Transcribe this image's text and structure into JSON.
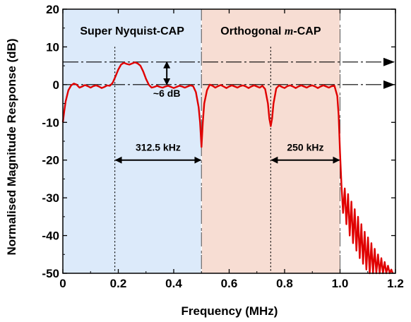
{
  "chart_data": {
    "type": "line",
    "xlabel": "Frequency (MHz)",
    "ylabel": "Normalised Magnitude Response (dB)",
    "xlim": [
      0,
      1.2
    ],
    "ylim": [
      -50,
      20
    ],
    "x_ticks": [
      "0",
      "0.2",
      "0.4",
      "0.6",
      "0.8",
      "1.0",
      "1.2"
    ],
    "y_ticks": [
      "-50",
      "-40",
      "-30",
      "-20",
      "-10",
      "0",
      "10",
      "20"
    ],
    "grid": false,
    "regions": [
      {
        "label": "Super Nyquist-CAP",
        "x_start": 0,
        "x_end": 0.5,
        "color": "#dceafa"
      },
      {
        "label": "Orthogonal m-CAP",
        "label_main": "Orthogonal ",
        "label_italic": "m",
        "label_tail": "-CAP",
        "x_start": 0.5,
        "x_end": 1.0,
        "color": "#f7ddd3"
      }
    ],
    "series": [
      {
        "color": "#e00000",
        "points": [
          [
            0.0,
            -10
          ],
          [
            0.005,
            -7
          ],
          [
            0.01,
            -4.5
          ],
          [
            0.02,
            -1.5
          ],
          [
            0.03,
            -0.2
          ],
          [
            0.04,
            0.3
          ],
          [
            0.05,
            0
          ],
          [
            0.06,
            -0.8
          ],
          [
            0.07,
            -0.5
          ],
          [
            0.08,
            -0.1
          ],
          [
            0.09,
            -0.4
          ],
          [
            0.1,
            -0.8
          ],
          [
            0.11,
            -0.4
          ],
          [
            0.12,
            -0.2
          ],
          [
            0.13,
            -0.5
          ],
          [
            0.14,
            -0.9
          ],
          [
            0.15,
            -0.6
          ],
          [
            0.16,
            -0.2
          ],
          [
            0.17,
            -0.3
          ],
          [
            0.18,
            0.5
          ],
          [
            0.19,
            2.2
          ],
          [
            0.2,
            4.0
          ],
          [
            0.21,
            5.3
          ],
          [
            0.22,
            5.8
          ],
          [
            0.23,
            5.5
          ],
          [
            0.24,
            5.3
          ],
          [
            0.25,
            5.6
          ],
          [
            0.26,
            5.9
          ],
          [
            0.27,
            5.6
          ],
          [
            0.28,
            5.0
          ],
          [
            0.29,
            3.5
          ],
          [
            0.3,
            1.5
          ],
          [
            0.31,
            0
          ],
          [
            0.32,
            -0.8
          ],
          [
            0.33,
            -0.6
          ],
          [
            0.34,
            -0.3
          ],
          [
            0.35,
            -0.6
          ],
          [
            0.36,
            -0.8
          ],
          [
            0.37,
            -0.5
          ],
          [
            0.38,
            -0.3
          ],
          [
            0.39,
            -0.6
          ],
          [
            0.4,
            -0.9
          ],
          [
            0.41,
            -0.6
          ],
          [
            0.42,
            -0.3
          ],
          [
            0.43,
            -0.5
          ],
          [
            0.44,
            -0.8
          ],
          [
            0.45,
            -0.5
          ],
          [
            0.46,
            -0.2
          ],
          [
            0.47,
            -0.4
          ],
          [
            0.48,
            -2.0
          ],
          [
            0.49,
            -6
          ],
          [
            0.495,
            -10
          ],
          [
            0.5,
            -16.5
          ],
          [
            0.505,
            -10
          ],
          [
            0.51,
            -5
          ],
          [
            0.52,
            -1.5
          ],
          [
            0.53,
            0
          ],
          [
            0.54,
            -0.3
          ],
          [
            0.55,
            -0.8
          ],
          [
            0.56,
            -0.4
          ],
          [
            0.57,
            -0.1
          ],
          [
            0.58,
            -0.5
          ],
          [
            0.59,
            -0.9
          ],
          [
            0.6,
            -0.5
          ],
          [
            0.61,
            -0.2
          ],
          [
            0.62,
            -0.5
          ],
          [
            0.63,
            -0.8
          ],
          [
            0.64,
            -0.4
          ],
          [
            0.65,
            -0.2
          ],
          [
            0.66,
            -0.5
          ],
          [
            0.67,
            -0.9
          ],
          [
            0.68,
            -0.5
          ],
          [
            0.69,
            -0.2
          ],
          [
            0.7,
            -0.5
          ],
          [
            0.71,
            -0.8
          ],
          [
            0.72,
            -0.3
          ],
          [
            0.73,
            -1.2
          ],
          [
            0.74,
            -5
          ],
          [
            0.745,
            -9
          ],
          [
            0.75,
            -11
          ],
          [
            0.755,
            -9
          ],
          [
            0.76,
            -5
          ],
          [
            0.77,
            -1.0
          ],
          [
            0.78,
            -0.2
          ],
          [
            0.79,
            -0.6
          ],
          [
            0.8,
            -0.9
          ],
          [
            0.81,
            -0.4
          ],
          [
            0.82,
            -0.2
          ],
          [
            0.83,
            -0.5
          ],
          [
            0.84,
            -0.9
          ],
          [
            0.85,
            -0.5
          ],
          [
            0.86,
            -0.2
          ],
          [
            0.87,
            -0.5
          ],
          [
            0.88,
            -0.8
          ],
          [
            0.89,
            -0.4
          ],
          [
            0.9,
            -0.2
          ],
          [
            0.91,
            -0.5
          ],
          [
            0.92,
            -0.9
          ],
          [
            0.93,
            -0.5
          ],
          [
            0.94,
            -0.2
          ],
          [
            0.95,
            -0.5
          ],
          [
            0.96,
            -0.8
          ],
          [
            0.97,
            -0.4
          ],
          [
            0.98,
            -0.3
          ],
          [
            0.99,
            -3
          ],
          [
            0.995,
            -8
          ],
          [
            1.0,
            -18
          ],
          [
            1.005,
            -26.5
          ],
          [
            1.011,
            -34
          ],
          [
            1.017,
            -27.5
          ],
          [
            1.023,
            -37
          ],
          [
            1.029,
            -29
          ],
          [
            1.035,
            -40
          ],
          [
            1.041,
            -31
          ],
          [
            1.047,
            -42
          ],
          [
            1.053,
            -33
          ],
          [
            1.059,
            -44
          ],
          [
            1.065,
            -35
          ],
          [
            1.071,
            -46
          ],
          [
            1.077,
            -37
          ],
          [
            1.083,
            -47.5
          ],
          [
            1.089,
            -39
          ],
          [
            1.095,
            -49
          ],
          [
            1.101,
            -40.5
          ],
          [
            1.107,
            -50
          ],
          [
            1.113,
            -42
          ],
          [
            1.119,
            -50
          ],
          [
            1.125,
            -43.5
          ],
          [
            1.131,
            -50
          ],
          [
            1.137,
            -45
          ],
          [
            1.143,
            -50
          ],
          [
            1.149,
            -46
          ],
          [
            1.155,
            -50
          ],
          [
            1.161,
            -47
          ],
          [
            1.167,
            -50
          ],
          [
            1.173,
            -48
          ],
          [
            1.179,
            -50
          ],
          [
            1.185,
            -49
          ],
          [
            1.19,
            -50
          ]
        ]
      }
    ],
    "reference_lines": [
      {
        "y": 6,
        "x_start": 0,
        "x_end": 1.2
      },
      {
        "y": 0,
        "x_start": 0,
        "x_end": 1.2
      }
    ],
    "vertical_guides": [
      0.1875,
      0.5,
      0.75,
      1.0
    ],
    "annotations": [
      {
        "text": "~6 dB",
        "x": 0.375,
        "y_from": 0,
        "y_to": 6
      },
      {
        "text": "312.5 kHz",
        "x_from": 0.1875,
        "x_to": 0.5,
        "y": -20
      },
      {
        "text": "250 kHz",
        "x_from": 0.75,
        "x_to": 1.0,
        "y": -20
      }
    ]
  }
}
